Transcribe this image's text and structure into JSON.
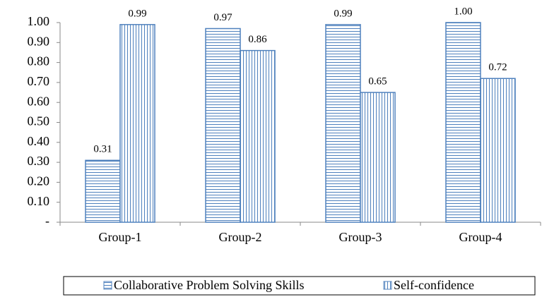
{
  "chart_data": {
    "type": "bar",
    "categories": [
      "Group-1",
      "Group-2",
      "Group-3",
      "Group-4"
    ],
    "series": [
      {
        "name": "Collaborative Problem Solving Skills",
        "color": "#4f81bd",
        "pattern": "horizontal",
        "values": [
          0.31,
          0.97,
          0.99,
          1.0
        ],
        "value_labels": [
          "0.31",
          "0.97",
          "0.99",
          "1.00"
        ]
      },
      {
        "name": "Self-confidence",
        "color": "#4f81bd",
        "pattern": "vertical",
        "values": [
          0.99,
          0.86,
          0.65,
          0.72
        ],
        "value_labels": [
          "0.99",
          "0.86",
          "0.65",
          "0.72"
        ]
      }
    ],
    "ylim": [
      0,
      1.0
    ],
    "yticks": [
      {
        "value": 0,
        "label": "-"
      },
      {
        "value": 0.1,
        "label": "0.10"
      },
      {
        "value": 0.2,
        "label": "0.20"
      },
      {
        "value": 0.3,
        "label": "0.30"
      },
      {
        "value": 0.4,
        "label": "0.40"
      },
      {
        "value": 0.5,
        "label": "0.50"
      },
      {
        "value": 0.6,
        "label": "0.60"
      },
      {
        "value": 0.7,
        "label": "0.70"
      },
      {
        "value": 0.8,
        "label": "0.80"
      },
      {
        "value": 0.9,
        "label": "0.90"
      },
      {
        "value": 1.0,
        "label": "1.00"
      }
    ],
    "grid": false,
    "legend": "bottom"
  }
}
